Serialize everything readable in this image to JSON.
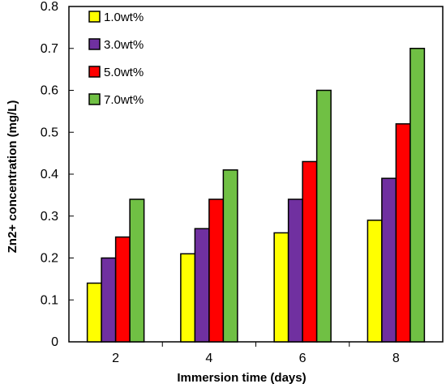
{
  "chart_data": {
    "type": "bar",
    "xlabel": "Immersion time (days)",
    "ylabel": "Zn2+  concentration (mg/L)",
    "categories": [
      "2",
      "4",
      "6",
      "8"
    ],
    "ylim": [
      0,
      0.8
    ],
    "yticks": [
      "0",
      "0.1",
      "0.2",
      "0.3",
      "0.4",
      "0.5",
      "0.6",
      "0.7",
      "0.8"
    ],
    "legend_position": "top-left",
    "grid": false,
    "series": [
      {
        "name": "1.0wt%",
        "color": "#ffff00",
        "values": [
          0.14,
          0.21,
          0.26,
          0.29
        ]
      },
      {
        "name": "3.0wt%",
        "color": "#7030a0",
        "values": [
          0.2,
          0.27,
          0.34,
          0.39
        ]
      },
      {
        "name": "5.0wt%",
        "color": "#ff0000",
        "values": [
          0.25,
          0.34,
          0.43,
          0.52
        ]
      },
      {
        "name": "7.0wt%",
        "color": "#70c044",
        "values": [
          0.34,
          0.41,
          0.6,
          0.7
        ]
      }
    ]
  }
}
